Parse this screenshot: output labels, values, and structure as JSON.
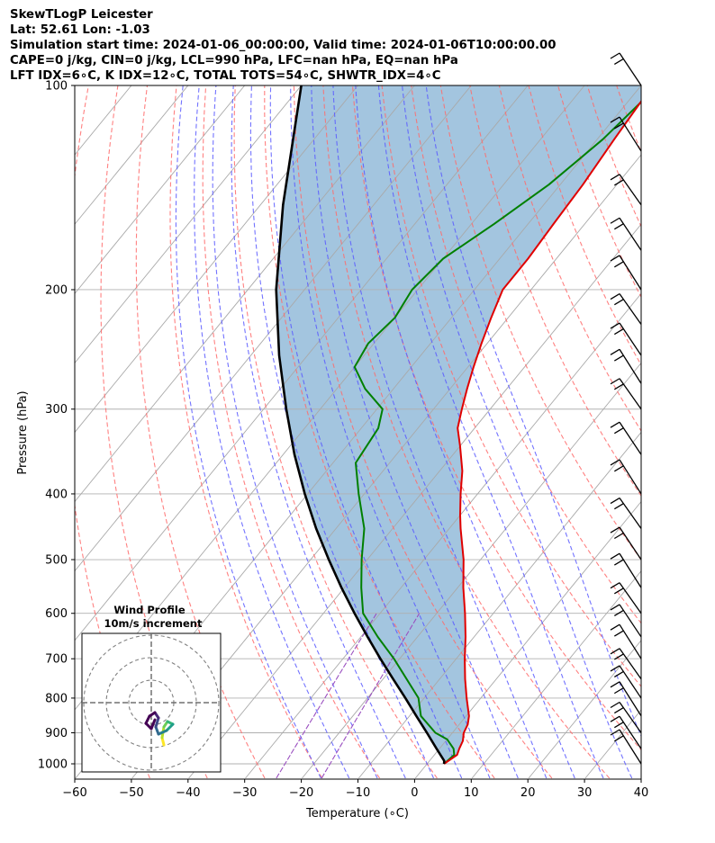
{
  "title_lines": [
    "SkewTLogP Leicester",
    "Lat: 52.61   Lon: -1.03",
    "Simulation start time: 2024-01-06_00:00:00, Valid time: 2024-01-06T10:00:00.00",
    "CAPE=0 j/kg, CIN=0 j/kg, LCL=990 hPa, LFC=nan hPa, EQ=nan hPa",
    "LFT IDX=6∘C, K IDX=12∘C, TOTAL TOTS=54∘C, SHWTR_IDX=4∘C"
  ],
  "chart_data": {
    "type": "line",
    "xlabel": "Temperature (∘C)",
    "ylabel": "Pressure (hPa)",
    "xlim": [
      -60,
      40
    ],
    "ylim": [
      1050,
      100
    ],
    "y_scale": "log",
    "skew": true,
    "grid": true,
    "x_ticks": [
      -60,
      -50,
      -40,
      -30,
      -20,
      -10,
      0,
      10,
      20,
      30,
      40
    ],
    "y_ticks": [
      1000,
      900,
      800,
      700,
      600,
      500,
      400,
      300,
      200,
      100
    ],
    "colors": {
      "temperature": "#e00000",
      "dewpoint": "#008000",
      "parcel": "#000000",
      "shade": "#a3c5df",
      "dry_adiabats": "#ff6b6b",
      "moist_adiabats": "#5b5bff",
      "mixing_ratio": "#9a4fc0",
      "isotherms": "#a9a9a9"
    },
    "series": [
      {
        "key": "temperature",
        "pressure": [
          1000,
          970,
          950,
          925,
          900,
          875,
          850,
          800,
          750,
          700,
          650,
          600,
          550,
          500,
          450,
          430,
          400,
          370,
          340,
          320,
          300,
          280,
          260,
          240,
          220,
          200,
          180,
          160,
          140,
          120,
          100
        ],
        "values": [
          3,
          4,
          3.5,
          3,
          2,
          1.5,
          0.5,
          -2.5,
          -5.5,
          -8.5,
          -11.5,
          -15,
          -19,
          -23,
          -28,
          -30,
          -33,
          -36,
          -40,
          -43,
          -45,
          -47,
          -49,
          -51,
          -53,
          -55,
          -55,
          -55.5,
          -56,
          -57,
          -58
        ]
      },
      {
        "key": "dewpoint",
        "pressure": [
          1000,
          970,
          950,
          920,
          900,
          850,
          800,
          700,
          650,
          600,
          550,
          500,
          450,
          400,
          360,
          320,
          300,
          280,
          260,
          240,
          220,
          200,
          180,
          160,
          140,
          120,
          100
        ],
        "values": [
          3,
          3.5,
          2.5,
          0,
          -3,
          -8,
          -11,
          -21,
          -27,
          -33,
          -37,
          -41,
          -45,
          -51,
          -56,
          -57,
          -59,
          -65,
          -70,
          -71,
          -70,
          -71,
          -70,
          -66,
          -62,
          -59,
          -57
        ]
      },
      {
        "key": "parcel",
        "pressure": [
          1000,
          990,
          950,
          900,
          850,
          800,
          750,
          700,
          650,
          600,
          550,
          500,
          450,
          400,
          350,
          300,
          250,
          200,
          150,
          100
        ],
        "values": [
          3,
          2.6,
          -0.5,
          -4.5,
          -8.8,
          -13.3,
          -18.2,
          -23.4,
          -28.8,
          -34.5,
          -40.5,
          -46.8,
          -53.5,
          -60.5,
          -68,
          -76,
          -85,
          -95,
          -106,
          -120
        ]
      }
    ],
    "wind_barbs_pressure": [
      1000,
      950,
      900,
      850,
      800,
      750,
      700,
      650,
      600,
      550,
      500,
      450,
      400,
      350,
      300,
      275,
      250,
      225,
      200,
      175,
      150,
      125,
      100
    ],
    "hodograph": {
      "title": "Wind Profile",
      "subtitle": "10m/s increment"
    }
  }
}
